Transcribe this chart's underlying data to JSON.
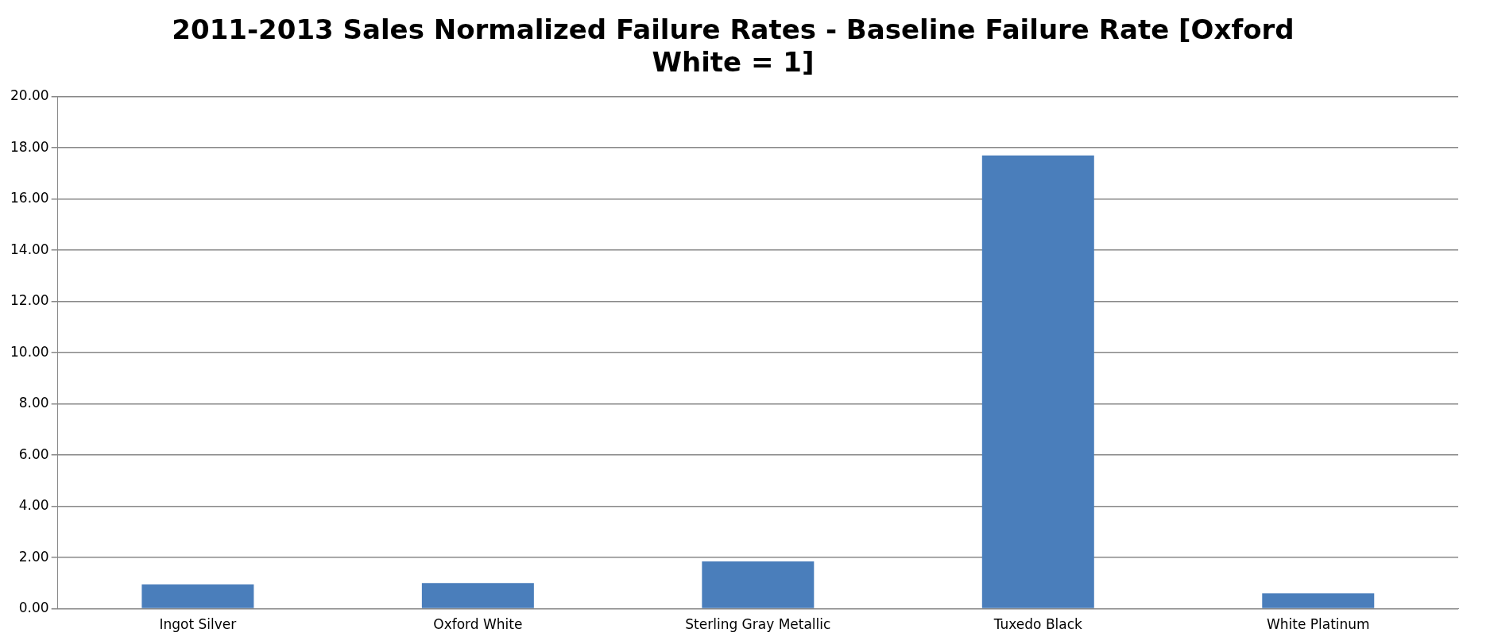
{
  "chart_data": {
    "type": "bar",
    "title": [
      "2011-2013 Sales Normalized Failure Rates - Baseline Failure Rate [Oxford",
      "White = 1]"
    ],
    "categories": [
      "Ingot Silver",
      "Oxford White",
      "Sterling Gray Metallic",
      "Tuxedo Black",
      "White Platinum"
    ],
    "values": [
      0.95,
      1.0,
      1.85,
      17.7,
      0.6
    ],
    "color": "#4a7ebb",
    "ylim": [
      0,
      20
    ],
    "yticks": [
      {
        "value": 0,
        "label": "0.00"
      },
      {
        "value": 2,
        "label": "2.00"
      },
      {
        "value": 4,
        "label": "4.00"
      },
      {
        "value": 6,
        "label": "6.00"
      },
      {
        "value": 8,
        "label": "8.00"
      },
      {
        "value": 10,
        "label": "10.00"
      },
      {
        "value": 12,
        "label": "12.00"
      },
      {
        "value": 14,
        "label": "14.00"
      },
      {
        "value": 16,
        "label": "16.00"
      },
      {
        "value": 18,
        "label": "18.00"
      },
      {
        "value": 20,
        "label": "20.00"
      }
    ],
    "grid": "y"
  }
}
